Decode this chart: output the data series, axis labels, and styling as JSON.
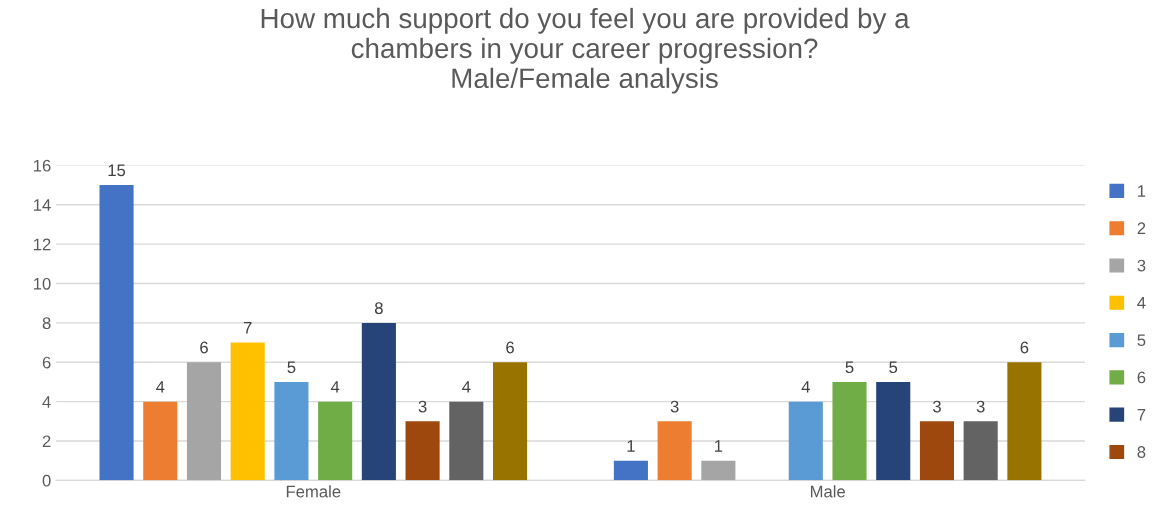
{
  "chart_data": {
    "type": "bar",
    "title": "How much support do you feel you are provided by a\nchambers in your career progression?\nMale/Female analysis",
    "categories": [
      "Female",
      "Male"
    ],
    "series": [
      {
        "name": "1",
        "color": "#4472c4",
        "values": [
          15,
          1
        ]
      },
      {
        "name": "2",
        "color": "#ed7d31",
        "values": [
          4,
          3
        ]
      },
      {
        "name": "3",
        "color": "#a5a5a5",
        "values": [
          6,
          1
        ]
      },
      {
        "name": "4",
        "color": "#ffc000",
        "values": [
          7,
          null
        ]
      },
      {
        "name": "5",
        "color": "#5b9bd5",
        "values": [
          5,
          4
        ]
      },
      {
        "name": "6",
        "color": "#70ad47",
        "values": [
          4,
          5
        ]
      },
      {
        "name": "7",
        "color": "#264478",
        "values": [
          8,
          5
        ]
      },
      {
        "name": "8",
        "color": "#9e480e",
        "values": [
          3,
          3
        ]
      },
      {
        "color": "#636363",
        "values": [
          4,
          3
        ]
      },
      {
        "color": "#997300",
        "values": [
          6,
          6
        ]
      }
    ],
    "ylim": [
      0,
      16
    ],
    "yticks": [
      0,
      2,
      4,
      6,
      8,
      10,
      12,
      14,
      16
    ],
    "grid": "y",
    "legend": "right",
    "data_labels": true
  }
}
